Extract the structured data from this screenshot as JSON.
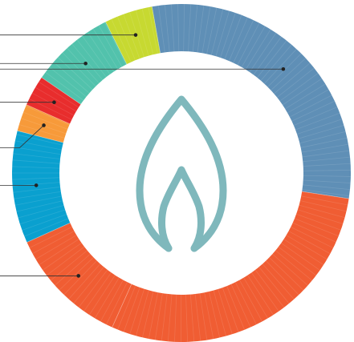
{
  "chart_data": {
    "type": "pie",
    "variant": "donut",
    "start_angle_deg": -100,
    "direction": "clockwise",
    "slices": [
      {
        "name": "",
        "value": 36.0,
        "color": "#5f8fb6",
        "leader": true
      },
      {
        "name": "",
        "value": 34.9,
        "color": "#f05d33",
        "leader": false
      },
      {
        "name": "",
        "value": 13.8,
        "color": "#f05d33",
        "leader": true
      },
      {
        "name": "",
        "value": 12.8,
        "color": "#0aa0cf",
        "leader": true
      },
      {
        "name": "",
        "value": 3.1,
        "color": "#f79a3a",
        "leader": true
      },
      {
        "name": "",
        "value": 3.5,
        "color": "#e82d2d",
        "leader": true
      },
      {
        "name": "",
        "value": 9.6,
        "color": "#52c2ac",
        "leader": true
      },
      {
        "name": "",
        "value": 5.5,
        "color": "#c7d931",
        "leader": true
      }
    ],
    "center_icon": {
      "name": "flame-icon",
      "color": "#7fb8bc"
    },
    "legend": "none"
  }
}
